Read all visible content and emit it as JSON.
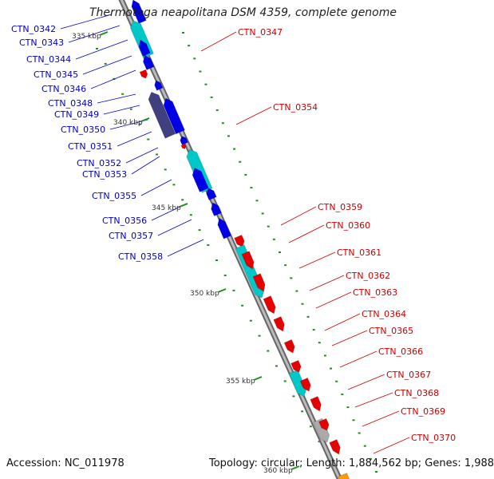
{
  "title": "Thermotoga neapolitana DSM 4359, complete genome",
  "footer": {
    "accession": "Accession: NC_011978",
    "summary": "Topology: circular; Length: 1,884,562 bp; Genes: 1,988"
  },
  "colors": {
    "forward_gene": "#e60000",
    "reverse_gene": "#0000e6",
    "rna_or_feature": "#00c8c8",
    "pseudo": "#404080",
    "backbone": "#888888",
    "tick": "#228b22"
  },
  "kbp_labels": [
    "335 kbp",
    "340 kbp",
    "345 kbp",
    "350 kbp",
    "355 kbp",
    "360 kbp"
  ],
  "left_labels": [
    "CTN_0342",
    "CTN_0343",
    "CTN_0344",
    "CTN_0345",
    "CTN_0346",
    "CTN_0348",
    "CTN_0349",
    "CTN_0350",
    "CTN_0351",
    "CTN_0352",
    "CTN_0353",
    "CTN_0355",
    "CTN_0356",
    "CTN_0357",
    "CTN_0358"
  ],
  "right_labels": [
    "CTN_0347",
    "CTN_0354",
    "CTN_0359",
    "CTN_0360",
    "CTN_0361",
    "CTN_0362",
    "CTN_0363",
    "CTN_0364",
    "CTN_0365",
    "CTN_0366",
    "CTN_0367",
    "CTN_0368",
    "CTN_0369",
    "CTN_0370"
  ]
}
